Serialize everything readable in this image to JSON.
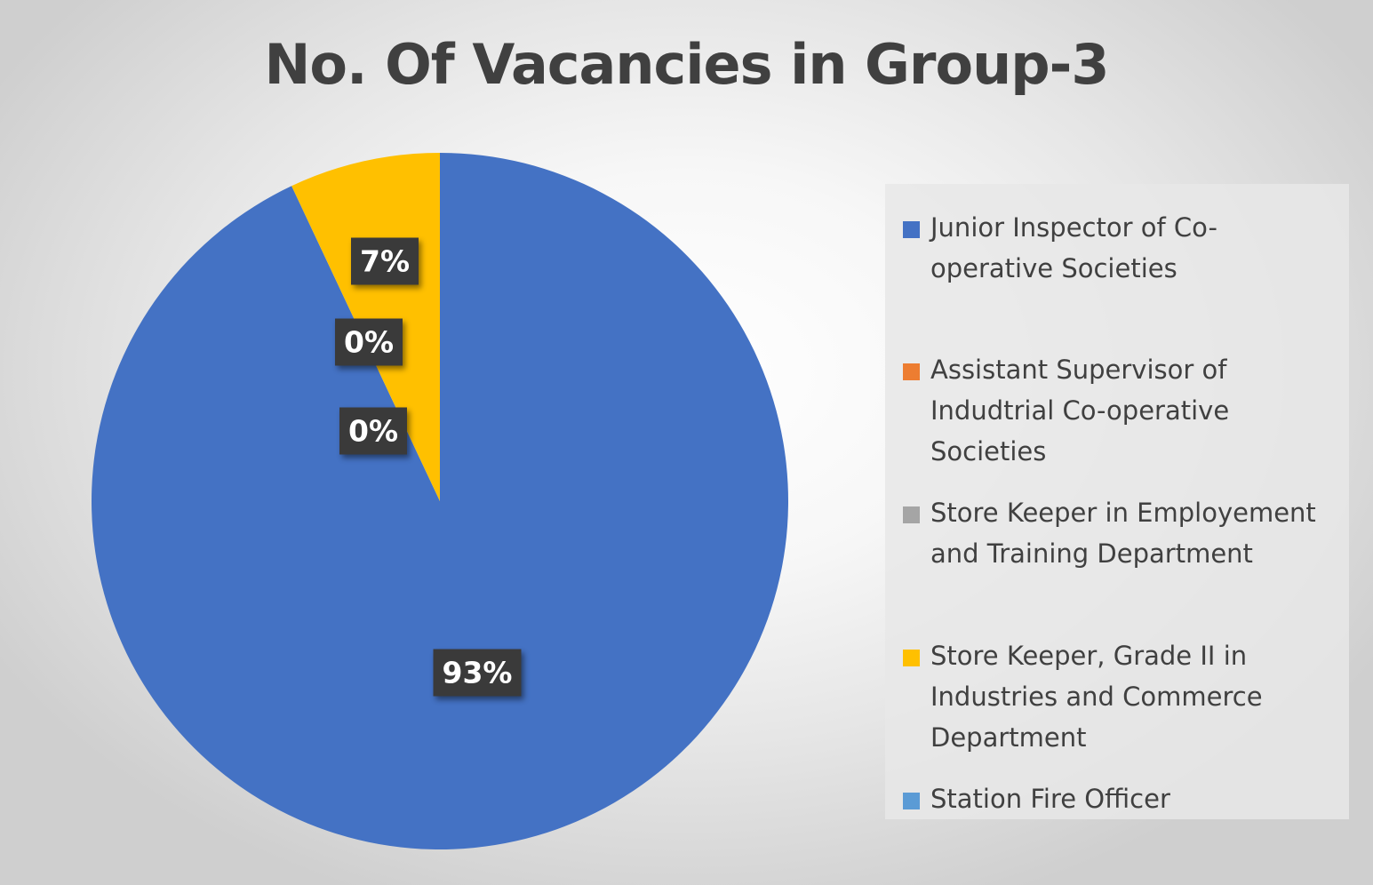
{
  "chart_data": {
    "type": "pie",
    "title": "No. Of Vacancies in Group-3",
    "slices": [
      {
        "label": "Junior Inspector of Co-operative Societies",
        "display": "Junior Inspector of Co-\noperative Societies",
        "value": 93,
        "data_label": "93%",
        "color": "#4472C4"
      },
      {
        "label": "Assistant Supervisor of Indudtrial Co-operative Societies",
        "display": "Assistant Supervisor of\nIndudtrial Co-operative\nSocieties",
        "value": 0,
        "data_label": "0%",
        "color": "#ED7D31"
      },
      {
        "label": "Store Keeper in Employement and Training Department",
        "display": "Store Keeper in Employement\nand Training Department",
        "value": 0,
        "data_label": "0%",
        "color": "#A5A5A5"
      },
      {
        "label": "Store Keeper, Grade II in Industries and Commerce Department",
        "display": "Store Keeper, Grade II in\nIndustries and Commerce\nDepartment",
        "value": 7,
        "data_label": "7%",
        "color": "#FFC000"
      },
      {
        "label": "Station Fire Officer",
        "display": "Station Fire Officer",
        "value": 0,
        "data_label": "",
        "color": "#5B9BD5"
      }
    ],
    "legend_position": "right"
  }
}
